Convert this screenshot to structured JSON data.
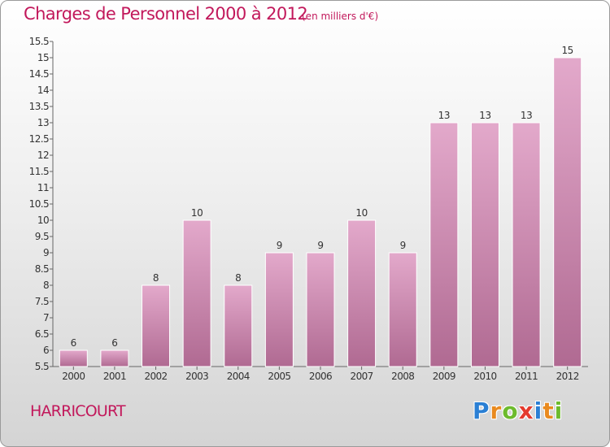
{
  "chart_data": {
    "type": "bar",
    "title": "Charges de Personnel 2000 à 2012",
    "subtitle": "(en milliers d'€)",
    "categories": [
      "2000",
      "2001",
      "2002",
      "2003",
      "2004",
      "2005",
      "2006",
      "2007",
      "2008",
      "2009",
      "2010",
      "2011",
      "2012"
    ],
    "values": [
      6,
      6,
      8,
      10,
      8,
      9,
      9,
      10,
      9,
      13,
      13,
      13,
      15
    ],
    "data_labels": [
      "6",
      "6",
      "8",
      "10",
      "8",
      "9",
      "9",
      "10",
      "9",
      "13",
      "13",
      "13",
      "15"
    ],
    "ylim": [
      5.5,
      15.5
    ],
    "yticks": [
      5.5,
      6,
      6.5,
      7,
      7.5,
      8,
      8.5,
      9,
      9.5,
      10,
      10.5,
      11,
      11.5,
      12,
      12.5,
      13,
      13.5,
      14,
      14.5,
      15,
      15.5
    ],
    "ytick_labels": [
      "5.5",
      "6",
      "6.5",
      "7",
      "7.5",
      "8",
      "8.5",
      "9",
      "9.5",
      "10",
      "10.5",
      "11",
      "11.5",
      "12",
      "12.5",
      "13",
      "13.5",
      "14",
      "14.5",
      "15",
      "15.5"
    ],
    "xlabel": "",
    "ylabel": "",
    "grid": false,
    "legend": "none",
    "bar_color": "#d48fb7"
  },
  "place": "HARRICOURT",
  "logo": {
    "letters": [
      "P",
      "r",
      "o",
      "x",
      "i",
      "t",
      "i"
    ],
    "colors": [
      "#2a7fd4",
      "#e98a1f",
      "#6dbb2d",
      "#e43b2e",
      "#2a7fd4",
      "#e98a1f",
      "#6dbb2d"
    ]
  },
  "colors": {
    "title": "#c2185b",
    "bar_light": "#e3a9cb",
    "bar_dark": "#b06a92"
  }
}
